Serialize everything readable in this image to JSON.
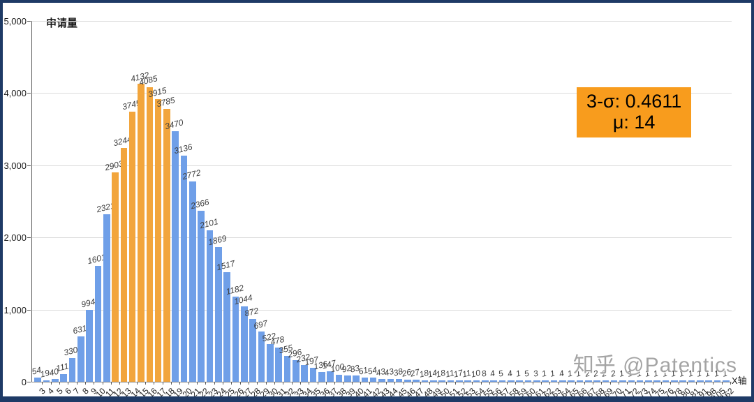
{
  "watermark": "知乎 @Patentics",
  "chart_data": {
    "type": "bar",
    "title": "",
    "ylabel": "申请量",
    "xlabel": "X轴",
    "ylim": [
      0,
      5000
    ],
    "yticks": [
      "5,000",
      "4,000",
      "3,000",
      "2,000",
      "1,000",
      "0"
    ],
    "grid": "horizontal",
    "bar_color": "#6f9fe8",
    "categories": [
      "3",
      "4",
      "5",
      "6",
      "7",
      "8",
      "9",
      "10",
      "11",
      "12",
      "13",
      "14",
      "15",
      "16",
      "17",
      "18",
      "19",
      "20",
      "21",
      "22",
      "23",
      "24",
      "25",
      "26",
      "27",
      "28",
      "29",
      "30",
      "31",
      "32",
      "33",
      "34",
      "35",
      "36",
      "37",
      "38",
      "39",
      "40",
      "41",
      "42",
      "43",
      "44",
      "45",
      "46",
      "47",
      "48",
      "49",
      "50",
      "51",
      "52",
      "53",
      "54",
      "55",
      "56",
      "57",
      "58",
      "59",
      "60",
      "61",
      "62",
      "63",
      "64",
      "65",
      "66",
      "67",
      "68",
      "69",
      "70",
      "71",
      "72",
      "73",
      "74",
      "75",
      "76",
      "78",
      "80",
      "81",
      "91",
      "98",
      "105",
      "162"
    ],
    "values": [
      54,
      19,
      40,
      111,
      330,
      631,
      994,
      1601,
      2321,
      2903,
      3244,
      3745,
      4132,
      4085,
      3915,
      3785,
      3470,
      3136,
      2772,
      2366,
      2101,
      1869,
      1517,
      1182,
      1044,
      872,
      697,
      522,
      478,
      355,
      296,
      232,
      197,
      136,
      147,
      100,
      92,
      83,
      61,
      54,
      43,
      43,
      38,
      26,
      27,
      18,
      14,
      18,
      11,
      17,
      11,
      10,
      8,
      4,
      5,
      4,
      1,
      5,
      3,
      1,
      1,
      4,
      1,
      1,
      2,
      2,
      2,
      2,
      1,
      1,
      1,
      1,
      1,
      1,
      1,
      1,
      1,
      1,
      1,
      1,
      1
    ],
    "highlight": {
      "categories": [
        "12",
        "13",
        "14",
        "15",
        "16",
        "17",
        "18"
      ],
      "color": "#f2a53c"
    },
    "annotation": {
      "line1": "3-σ: 0.4611",
      "line2": "μ: 14",
      "bg_color": "#f89c1d"
    }
  }
}
